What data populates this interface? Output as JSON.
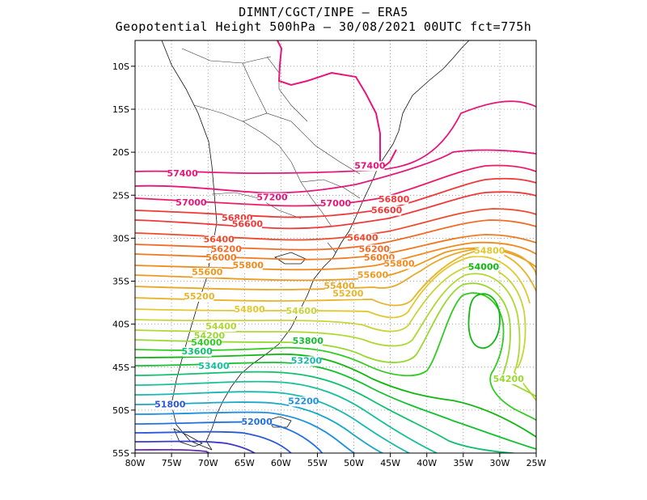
{
  "header": {
    "line1": "DIMNT/CGCT/INPE  –  ERA5",
    "line2": "Geopotential Height 500hPa –  30/08/2021 00UTC fct=775h"
  },
  "map": {
    "lon_ticks": [
      "80W",
      "75W",
      "70W",
      "65W",
      "60W",
      "55W",
      "50W",
      "45W",
      "40W",
      "35W",
      "30W",
      "25W"
    ],
    "lat_ticks": [
      "10S",
      "15S",
      "20S",
      "25S",
      "30S",
      "35S",
      "40S",
      "45S",
      "50S",
      "55S"
    ],
    "lon_range": [
      -80,
      -25
    ],
    "lat_range": [
      -55,
      -7
    ],
    "grid": "dotted",
    "contour_interval": 200
  },
  "contour_labels": [
    {
      "text": "57400",
      "lon": -73.5,
      "lat": -22.8,
      "color": "#e8157a"
    },
    {
      "text": "57400",
      "lon": -47.8,
      "lat": -21.9,
      "color": "#e8157a"
    },
    {
      "text": "57200",
      "lon": -61.2,
      "lat": -25.6,
      "color": "#e8157a"
    },
    {
      "text": "57000",
      "lon": -72.3,
      "lat": -26.2,
      "color": "#e8157a"
    },
    {
      "text": "57000",
      "lon": -52.5,
      "lat": -26.3,
      "color": "#e8157a"
    },
    {
      "text": "56800",
      "lon": -44.5,
      "lat": -25.8,
      "color": "#f03838"
    },
    {
      "text": "56800",
      "lon": -66,
      "lat": -28,
      "color": "#f03838"
    },
    {
      "text": "56600",
      "lon": -45.5,
      "lat": -27.1,
      "color": "#f03838"
    },
    {
      "text": "56600",
      "lon": -64.6,
      "lat": -28.7,
      "color": "#f03838"
    },
    {
      "text": "56400",
      "lon": -68.5,
      "lat": -30.5,
      "color": "#f04a2a"
    },
    {
      "text": "56400",
      "lon": -48.8,
      "lat": -30.3,
      "color": "#f04a2a"
    },
    {
      "text": "56200",
      "lon": -67.5,
      "lat": -31.6,
      "color": "#f26a26"
    },
    {
      "text": "56200",
      "lon": -47.2,
      "lat": -31.6,
      "color": "#f26a26"
    },
    {
      "text": "56000",
      "lon": -68.2,
      "lat": -32.6,
      "color": "#f07a20"
    },
    {
      "text": "56000",
      "lon": -46.5,
      "lat": -32.6,
      "color": "#f07a20"
    },
    {
      "text": "55800",
      "lon": -64.5,
      "lat": -33.5,
      "color": "#f08a1c"
    },
    {
      "text": "55800",
      "lon": -43.8,
      "lat": -33.3,
      "color": "#f08a1c"
    },
    {
      "text": "55600",
      "lon": -70.1,
      "lat": -34.3,
      "color": "#ee9a20"
    },
    {
      "text": "55600",
      "lon": -47.4,
      "lat": -34.6,
      "color": "#ee9a20"
    },
    {
      "text": "55400",
      "lon": -52,
      "lat": -35.9,
      "color": "#e8a826"
    },
    {
      "text": "55200",
      "lon": -50.8,
      "lat": -36.8,
      "color": "#e8b42a"
    },
    {
      "text": "55200",
      "lon": -71.2,
      "lat": -37.1,
      "color": "#e8b42a"
    },
    {
      "text": "54800",
      "lon": -31.4,
      "lat": -31.8,
      "color": "#e2c82e"
    },
    {
      "text": "54800",
      "lon": -64.3,
      "lat": -38.6,
      "color": "#e2c82e"
    },
    {
      "text": "54600",
      "lon": -57.2,
      "lat": -38.8,
      "color": "#c8d43a"
    },
    {
      "text": "54400",
      "lon": -68.2,
      "lat": -40.6,
      "color": "#b0d834"
    },
    {
      "text": "54200",
      "lon": -69.8,
      "lat": -41.7,
      "color": "#98d830"
    },
    {
      "text": "54200",
      "lon": -28.8,
      "lat": -46.7,
      "color": "#98d830"
    },
    {
      "text": "54000",
      "lon": -70.2,
      "lat": -42.5,
      "color": "#30cc20"
    },
    {
      "text": "54000",
      "lon": -32.2,
      "lat": -33.7,
      "color": "#10b810"
    },
    {
      "text": "53800",
      "lon": -56.3,
      "lat": -42.3,
      "color": "#12c030"
    },
    {
      "text": "53600",
      "lon": -71.5,
      "lat": -43.5,
      "color": "#10c070"
    },
    {
      "text": "53400",
      "lon": -69.2,
      "lat": -45.2,
      "color": "#18c09a"
    },
    {
      "text": "53200",
      "lon": -56.5,
      "lat": -44.6,
      "color": "#18b8b0"
    },
    {
      "text": "52200",
      "lon": -56.9,
      "lat": -49.3,
      "color": "#2090e0"
    },
    {
      "text": "52000",
      "lon": -63.3,
      "lat": -51.7,
      "color": "#2070e0"
    },
    {
      "text": "51800",
      "lon": -75.2,
      "lat": -49.7,
      "color": "#2a58d8"
    }
  ]
}
